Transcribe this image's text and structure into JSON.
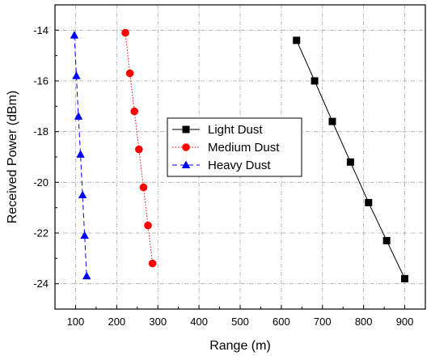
{
  "chart_data": {
    "type": "line",
    "title": "",
    "xlabel": "Range (m)",
    "ylabel": "Received Power (dBm)",
    "xlim": [
      50,
      950
    ],
    "ylim": [
      -25,
      -13
    ],
    "x_ticks": [
      100,
      200,
      300,
      400,
      500,
      600,
      700,
      800,
      900
    ],
    "y_ticks": [
      -14,
      -16,
      -18,
      -20,
      -22,
      -24
    ],
    "grid": true,
    "legend_position": "center",
    "series": [
      {
        "name": "Light Dust",
        "color": "#000000",
        "marker": "square",
        "line": "solid",
        "x": [
          637,
          681,
          724,
          768,
          812,
          856,
          900
        ],
        "y": [
          -14.4,
          -16.0,
          -17.6,
          -19.2,
          -20.8,
          -22.3,
          -23.8
        ]
      },
      {
        "name": "Medium Dust",
        "color": "#ff0000",
        "marker": "circle",
        "line": "dotted",
        "x": [
          221,
          232,
          243,
          254,
          265,
          276,
          287
        ],
        "y": [
          -14.1,
          -15.7,
          -17.2,
          -18.7,
          -20.2,
          -21.7,
          -23.2
        ]
      },
      {
        "name": "Heavy Dust",
        "color": "#0000ff",
        "marker": "triangle",
        "line": "dashed",
        "x": [
          97,
          102,
          107,
          112,
          117,
          122,
          127
        ],
        "y": [
          -14.2,
          -15.8,
          -17.4,
          -18.9,
          -20.5,
          -22.1,
          -23.7
        ]
      }
    ]
  }
}
